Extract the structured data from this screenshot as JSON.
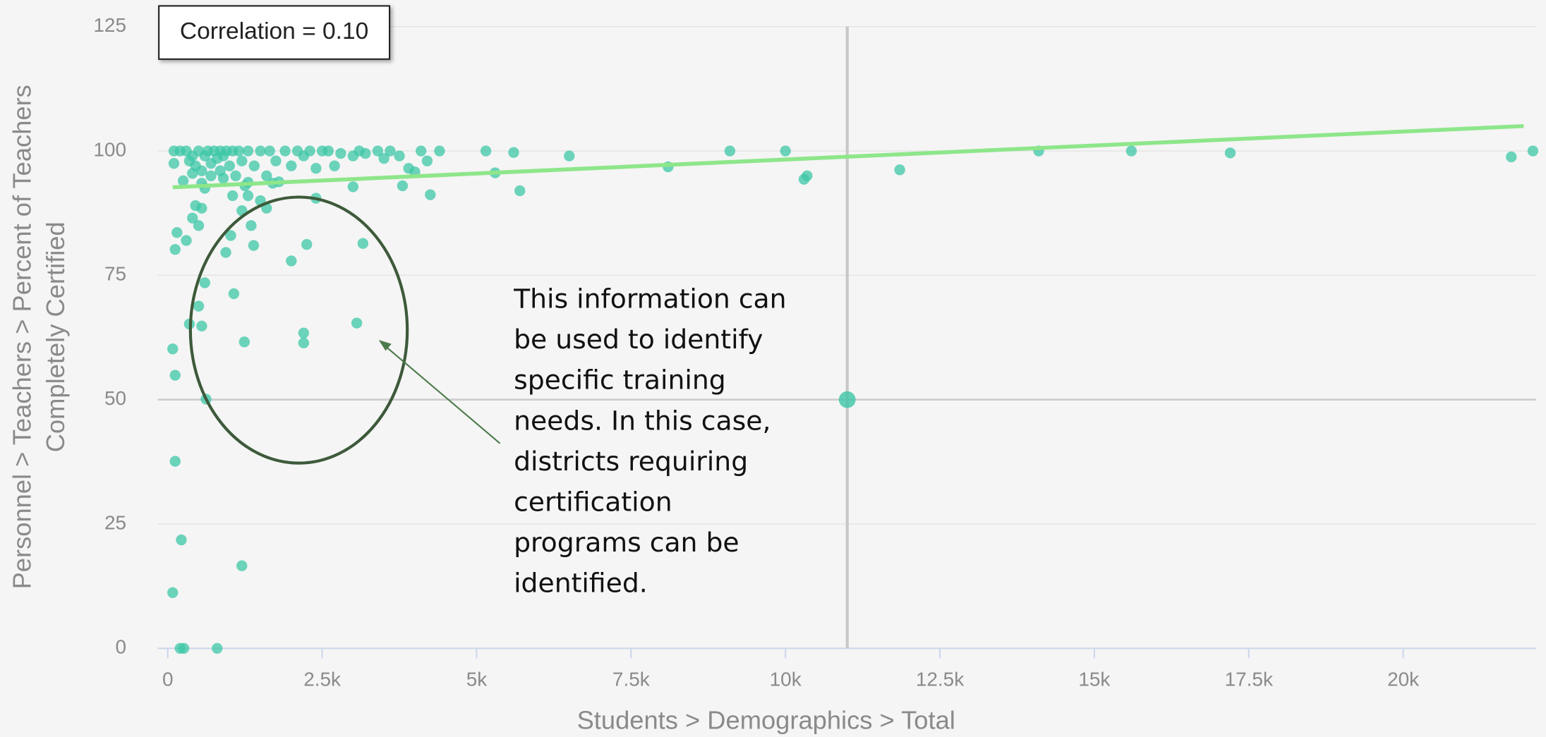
{
  "chart_data": {
    "type": "scatter",
    "annotation_box": "Correlation = 0.10",
    "ylabel": [
      "Personnel > Teachers > Percent of Teachers",
      "Completely Certified"
    ],
    "xlabel": "Students > Demographics > Total",
    "callout": [
      "This information can",
      "be used to identify",
      "specific training",
      "needs. In this case,",
      "districts requiring",
      "certification",
      "programs can be",
      "identified."
    ],
    "xlim": [
      -160,
      22150
    ],
    "ylim": [
      0,
      125
    ],
    "xticks": [
      0,
      {
        "value": 2500,
        "label": "2.5k"
      },
      {
        "value": 5000,
        "label": "5k"
      },
      {
        "value": 7500,
        "label": "7.5k"
      },
      {
        "value": 10000,
        "label": "10k"
      },
      {
        "value": 12500,
        "label": "12.5k"
      },
      {
        "value": 15000,
        "label": "15k"
      },
      {
        "value": 17500,
        "label": "17.5k"
      },
      {
        "value": 20000,
        "label": "20k"
      }
    ],
    "yticks": [
      0,
      25,
      50,
      75,
      100,
      125
    ],
    "grid": true,
    "color": "#3cc7a6",
    "trend_color": "#8ee68a",
    "trendline": {
      "x": [
        80,
        21950
      ],
      "y": [
        92.7,
        105
      ]
    },
    "vline": 11000,
    "hline": 50,
    "mean_point": {
      "x": 11000,
      "y": 50
    },
    "series": [
      {
        "x": [
          80,
          120,
          120,
          220,
          80,
          200,
          260,
          800,
          1200,
          620,
          120,
          150,
          300,
          350,
          500,
          550,
          600,
          1070,
          1240,
          940,
          1020,
          1390,
          1350,
          2000,
          2250,
          2200,
          2200,
          3060,
          3160,
          400,
          450,
          500,
          550,
          1200,
          1300,
          1600,
          1500,
          1700,
          2400,
          3000,
          3800,
          4250,
          5300,
          5700,
          8100,
          10300,
          10350,
          11850,
          5150,
          5600,
          6500,
          9100,
          10000,
          14100,
          15600,
          17200,
          21750,
          22100,
          100,
          100,
          200,
          300,
          350,
          400,
          450,
          500,
          550,
          600,
          650,
          700,
          750,
          800,
          850,
          900,
          950,
          1000,
          1050,
          1100,
          1150,
          1200,
          1250,
          1300,
          1400,
          1500,
          1600,
          1650,
          1750,
          1800,
          1900,
          2000,
          2100,
          2200,
          2300,
          2400,
          2500,
          2600,
          2700,
          2800,
          3000,
          3100,
          3200,
          3400,
          3500,
          3600,
          3750,
          3900,
          4000,
          4100,
          4200,
          4400,
          250,
          550,
          700,
          900,
          1050,
          1300,
          600,
          850,
          400
        ],
        "y": [
          60.2,
          54.9,
          37.6,
          21.8,
          11.2,
          0,
          0,
          0,
          16.6,
          50.1,
          80.2,
          83.6,
          82,
          65.2,
          68.8,
          64.8,
          73.5,
          71.3,
          61.6,
          79.6,
          83,
          81,
          85,
          77.9,
          81.2,
          63.4,
          61.4,
          65.4,
          81.4,
          86.5,
          89,
          85,
          88.5,
          88,
          91,
          88.5,
          90,
          93.5,
          90.5,
          92.8,
          93,
          91.2,
          95.6,
          92,
          96.8,
          94.3,
          95,
          96.2,
          100,
          99.7,
          99,
          100,
          100,
          100,
          100,
          99.6,
          98.8,
          100,
          97.5,
          100,
          100,
          100,
          98,
          99,
          97,
          100,
          96,
          99,
          100,
          97.5,
          100,
          98.5,
          100,
          99,
          100,
          97,
          100,
          95,
          100,
          98,
          93,
          100,
          97,
          100,
          95,
          100,
          98,
          93.8,
          100,
          97,
          100,
          99,
          100,
          96.5,
          100,
          100,
          97,
          99.5,
          99,
          100,
          99.5,
          100,
          98.5,
          100,
          99,
          96.5,
          95.8,
          100,
          98,
          100,
          94,
          93.5,
          95,
          94.5,
          91,
          93.7,
          92.5,
          96,
          95.5
        ]
      }
    ]
  }
}
